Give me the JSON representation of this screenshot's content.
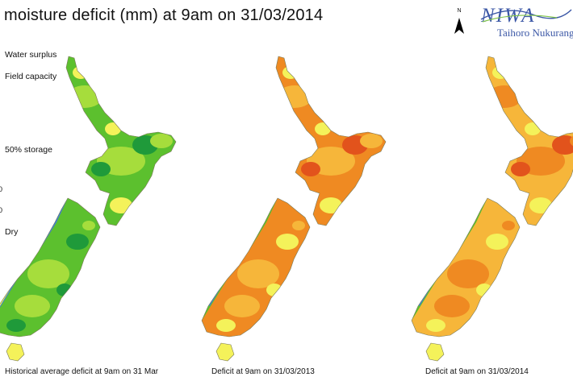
{
  "title": "il moisture deficit (mm) at  9am on 31/03/2014",
  "legend": {
    "labels": [
      "Water surplus",
      "Field capacity",
      "50% storage",
      "Dry"
    ],
    "cut_values": [
      "0",
      "0"
    ]
  },
  "maps": [
    {
      "caption": "Historical average deficit at 9am on 31 Mar",
      "palette": "wet"
    },
    {
      "caption": "Deficit at  9am on 31/03/2013",
      "palette": "dry"
    },
    {
      "caption": "Deficit at  9am on 31/03/2014",
      "palette": "mixed"
    }
  ],
  "north_label": "N",
  "logo": {
    "name": "NIWA",
    "tagline": "Taihoro Nukurangi"
  },
  "colors": {
    "surplus_blue": "#3f7fd6",
    "dark_green": "#1f9a3a",
    "green": "#5cc02e",
    "light_green": "#a6dd3c",
    "yellow": "#f4f25a",
    "light_orange": "#f6b63a",
    "orange": "#ef8a22",
    "red_orange": "#e2531c",
    "logo_blue": "#3b57a6"
  }
}
